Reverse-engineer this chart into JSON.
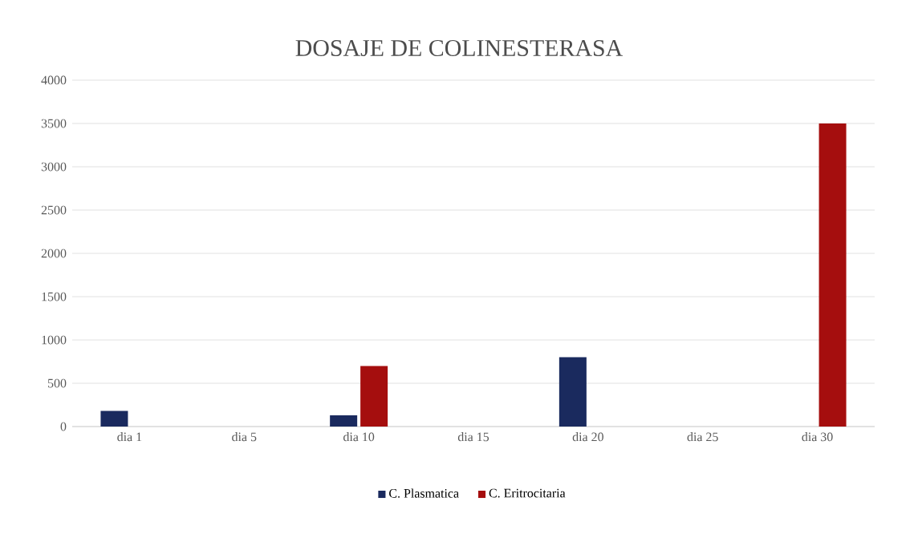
{
  "chart_data": {
    "type": "bar",
    "title": "DOSAJE  DE COLINESTERASA",
    "categories": [
      "dia 1",
      "dia 5",
      "dia 10",
      "dia 15",
      "dia 20",
      "dia 25",
      "dia 30"
    ],
    "series": [
      {
        "name": "C. Plasmatica",
        "color": "#1a2a5e",
        "values": [
          180,
          null,
          130,
          null,
          800,
          null,
          null
        ]
      },
      {
        "name": "C. Eritrocitaria",
        "color": "#a50e0e",
        "values": [
          null,
          null,
          700,
          null,
          null,
          null,
          3500
        ]
      }
    ],
    "ylim": [
      0,
      4000
    ],
    "yticks": [
      0,
      500,
      1000,
      1500,
      2000,
      2500,
      3000,
      3500,
      4000
    ],
    "grid": "y",
    "legend": "bottom"
  }
}
